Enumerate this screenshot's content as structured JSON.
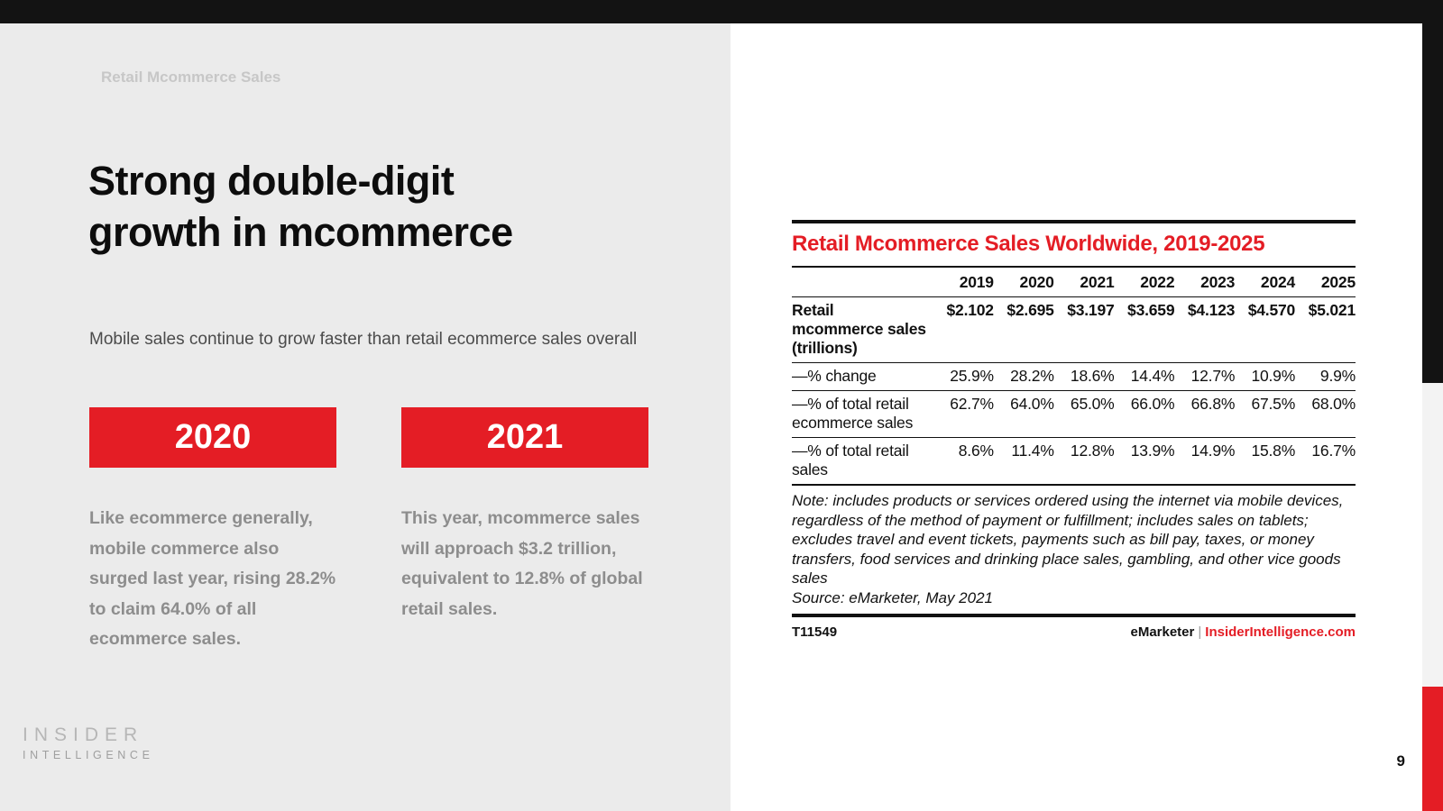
{
  "colors": {
    "accent_red": "#e41d25",
    "panel_gray": "#ebebeb",
    "bar_black": "#131313",
    "rail_gray": "#f3f3f3",
    "muted_text": "#8d8d8d"
  },
  "slide": {
    "eyebrow": "Retail Mcommerce Sales",
    "title_line1": "Strong double-digit",
    "title_line2": "growth in mcommerce",
    "subtitle": "Mobile sales continue to grow faster than retail ecommerce sales overall",
    "callouts": [
      {
        "year": "2020",
        "text": "Like ecommerce generally, mobile commerce also surged last year, rising 28.2% to claim 64.0% of all ecommerce sales."
      },
      {
        "year": "2021",
        "text": "This year, mcommerce sales will approach $3.2 trillion, equivalent to 12.8% of global retail sales."
      }
    ],
    "logo_line1": "INSIDER",
    "logo_line2": "INTELLIGENCE",
    "page_number": "9"
  },
  "chart_data": {
    "type": "table",
    "title": "Retail Mcommerce Sales Worldwide, 2019-2025",
    "columns": [
      "2019",
      "2020",
      "2021",
      "2022",
      "2023",
      "2024",
      "2025"
    ],
    "rows": [
      {
        "label": "Retail mcommerce sales (trillions)",
        "values": [
          "$2.102",
          "$2.695",
          "$3.197",
          "$3.659",
          "$4.123",
          "$4.570",
          "$5.021"
        ]
      },
      {
        "label": "—% change",
        "values": [
          "25.9%",
          "28.2%",
          "18.6%",
          "14.4%",
          "12.7%",
          "10.9%",
          "9.9%"
        ]
      },
      {
        "label": "—% of total retail ecommerce sales",
        "values": [
          "62.7%",
          "64.0%",
          "65.0%",
          "66.0%",
          "66.8%",
          "67.5%",
          "68.0%"
        ]
      },
      {
        "label": "—% of total retail sales",
        "values": [
          "8.6%",
          "11.4%",
          "12.8%",
          "13.9%",
          "14.9%",
          "15.8%",
          "16.7%"
        ]
      }
    ],
    "note": "Note: includes products or services ordered using the internet via mobile devices, regardless of the method of payment or fulfillment; includes sales on tablets; excludes travel and event tickets, payments such as bill pay, taxes, or money transfers, food services and drinking place sales, gambling, and other vice goods sales",
    "source": "Source: eMarketer, May 2021",
    "table_id": "T11549",
    "brand_left": "eMarketer",
    "brand_sep": "|",
    "brand_right": "InsiderIntelligence.com"
  }
}
